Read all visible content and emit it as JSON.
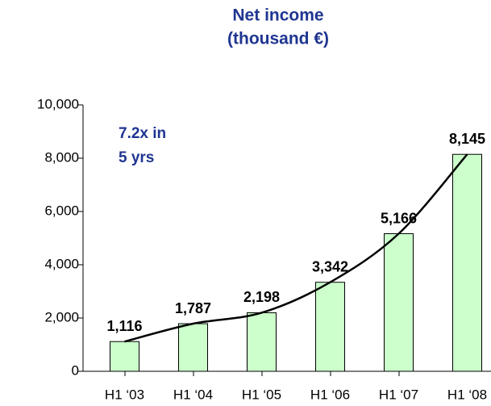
{
  "chart_data": {
    "type": "bar",
    "title": "Net income",
    "subtitle": "(thousand €)",
    "annotation": [
      "7.2x in",
      "5 yrs"
    ],
    "categories": [
      "H1 ‘03",
      "H1 ‘04",
      "H1 ‘05",
      "H1 ‘06",
      "H1 ‘07",
      "H1 ‘08"
    ],
    "values": [
      1116,
      1787,
      2198,
      3342,
      5166,
      8145
    ],
    "value_labels": [
      "1,116",
      "1,787",
      "2,198",
      "3,342",
      "5,166",
      "8,145"
    ],
    "color": "#ccffcc",
    "ylim": [
      0,
      10000
    ],
    "yticks": [
      0,
      {
        "value": 2000,
        "label": "2,000"
      },
      {
        "value": 4000,
        "label": "4,000"
      },
      {
        "value": 6000,
        "label": "6,000"
      },
      {
        "value": 8000,
        "label": "8,000"
      },
      {
        "value": 10000,
        "label": "10,000"
      }
    ]
  }
}
